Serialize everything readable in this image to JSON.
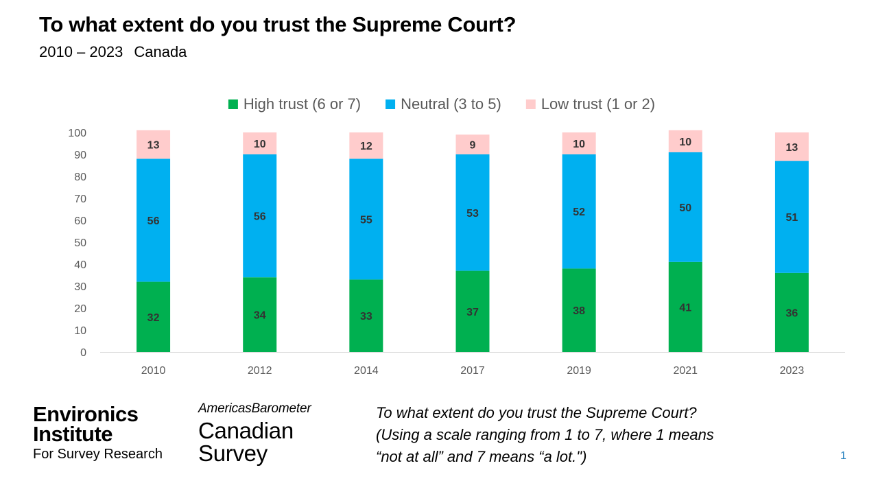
{
  "header": {
    "title": "To what extent do you trust the Supreme Court?",
    "subtitle_years": "2010 – 2023",
    "subtitle_country": "Canada"
  },
  "chart_data": {
    "type": "bar",
    "stacked": true,
    "categories": [
      "2010",
      "2012",
      "2014",
      "2017",
      "2019",
      "2021",
      "2023"
    ],
    "series": [
      {
        "name": "High trust (6 or 7)",
        "color": "#00b050",
        "values": [
          32,
          34,
          33,
          37,
          38,
          41,
          36
        ]
      },
      {
        "name": "Neutral (3 to 5)",
        "color": "#00b0f0",
        "values": [
          56,
          56,
          55,
          53,
          52,
          50,
          51
        ]
      },
      {
        "name": "Low trust (1 or 2)",
        "color": "#ffcccc",
        "values": [
          13,
          10,
          12,
          9,
          10,
          10,
          13
        ]
      }
    ],
    "ylim": [
      0,
      100
    ],
    "yticks": [
      0,
      10,
      20,
      30,
      40,
      50,
      60,
      70,
      80,
      90,
      100
    ],
    "grid": false,
    "legend": "top-center",
    "data_labels": true,
    "label_color": "#333333",
    "axis_label_color": "#595959"
  },
  "footer": {
    "logo1_line1": "Environics",
    "logo1_line2": "Institute",
    "logo1_line3": "For Survey Research",
    "logo2_top": "AmericasBarometer",
    "logo2_mid": "Canadian",
    "logo2_bot": "Survey",
    "question_line1": "To what extent do you trust the Supreme Court?",
    "question_line2": "(Using a scale ranging from 1 to 7, where 1 means",
    "question_line3": "“not at all” and 7 means “a lot.\")",
    "page_number": "1"
  }
}
